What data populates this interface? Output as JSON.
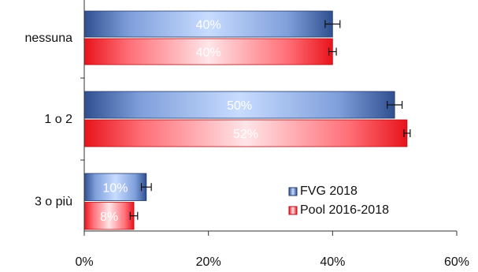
{
  "chart_data": {
    "type": "bar",
    "orientation": "horizontal",
    "categories": [
      "nessuna",
      "1 o 2",
      "3 o più"
    ],
    "series": [
      {
        "name": "FVG 2018",
        "values": [
          40,
          50,
          10
        ],
        "labels": [
          "40%",
          "50%",
          "10%"
        ],
        "error": [
          1.2,
          1.2,
          0.8
        ],
        "color": "#2f4f8f"
      },
      {
        "name": "Pool 2016-2018",
        "values": [
          40,
          52,
          8
        ],
        "labels": [
          "40%",
          "52%",
          "8%"
        ],
        "error": [
          0.6,
          0.5,
          0.6
        ],
        "color": "#e8131b"
      }
    ],
    "xlim": [
      0,
      60
    ],
    "xticks": [
      0,
      20,
      40,
      60
    ],
    "xtick_labels": [
      "0%",
      "20%",
      "40%",
      "60%"
    ],
    "grid": false,
    "legend": "bottom-right",
    "title": "",
    "xlabel": "",
    "ylabel": ""
  }
}
